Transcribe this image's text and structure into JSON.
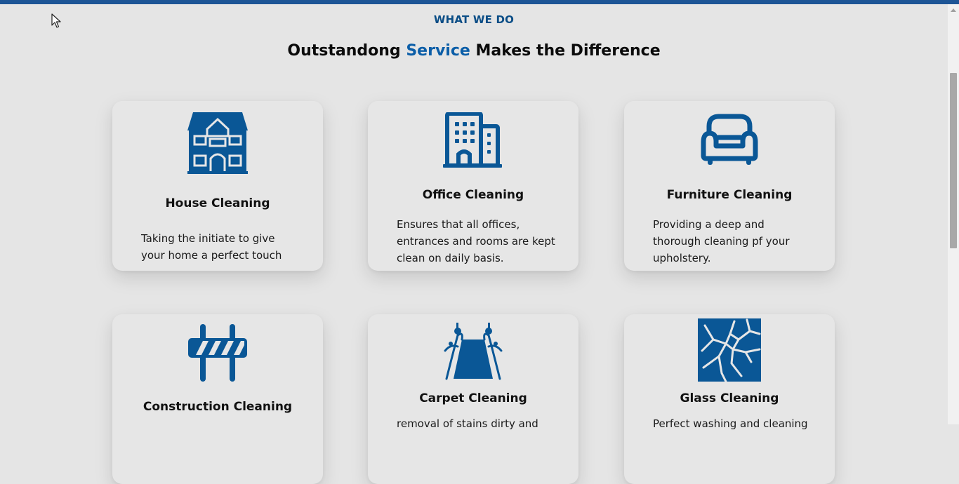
{
  "section": {
    "eyebrow": "WHAT WE DO",
    "heading_part1": "Outstandong",
    "heading_accent": "Service",
    "heading_part2": "Makes the Difference"
  },
  "colors": {
    "accent": "#0b5ea8",
    "icon": "#0a5796",
    "top_bar": "#1d5596"
  },
  "services": [
    {
      "title": "House Cleaning",
      "description": "Taking the initiate to give your home a perfect touch",
      "icon": "house-icon"
    },
    {
      "title": "Office Cleaning",
      "description": "Ensures that all offices, entrances and rooms are kept clean on daily basis.",
      "icon": "office-building-icon"
    },
    {
      "title": "Furniture Cleaning",
      "description": "Providing a deep and thorough cleaning pf your upholstery.",
      "icon": "armchair-icon"
    },
    {
      "title": "Construction Cleaning",
      "description": "",
      "icon": "road-barrier-icon"
    },
    {
      "title": "Carpet Cleaning",
      "description": "removal of stains dirty and",
      "icon": "carpet-icon"
    },
    {
      "title": "Glass Cleaning",
      "description": "Perfect washing and cleaning",
      "icon": "broken-glass-icon"
    }
  ]
}
